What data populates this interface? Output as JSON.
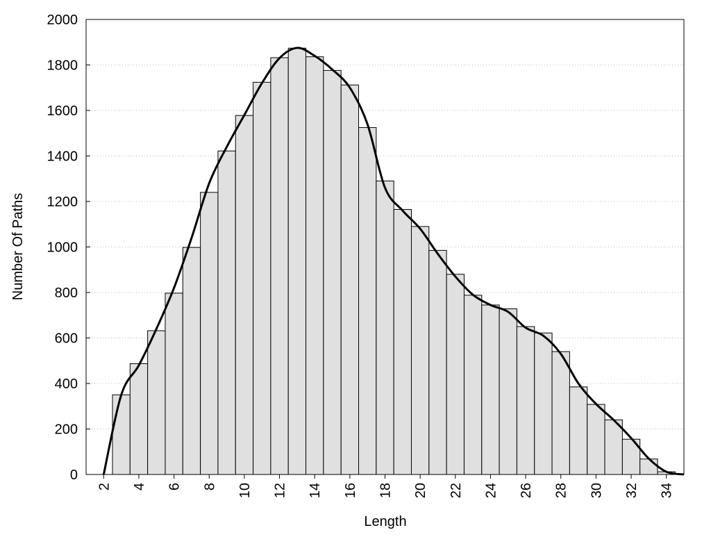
{
  "chart_data": {
    "type": "histogram",
    "xlabel": "Length",
    "ylabel": "Number Of Paths",
    "bins": [
      2.5,
      3.5,
      4.5,
      5.5,
      6.5,
      7.5,
      8.5,
      9.5,
      10.5,
      11.5,
      12.5,
      13.5,
      14.5,
      15.5,
      16.5,
      17.5,
      18.5,
      19.5,
      20.5,
      21.5,
      22.5,
      23.5,
      24.5,
      25.5,
      26.5,
      27.5,
      28.5,
      29.5,
      30.5,
      31.5,
      32.5,
      33.5,
      34.5
    ],
    "values": [
      350,
      487,
      632,
      797,
      998,
      1240,
      1422,
      1578,
      1724,
      1832,
      1874,
      1836,
      1776,
      1712,
      1525,
      1290,
      1165,
      1090,
      985,
      880,
      788,
      745,
      728,
      650,
      622,
      540,
      385,
      308,
      240,
      155,
      68,
      12
    ],
    "color": "#e0e0e0",
    "line": {
      "color": "#000000",
      "x": [
        2,
        3,
        4,
        5,
        6,
        7,
        8,
        9,
        10,
        11,
        12,
        13,
        14,
        15,
        16,
        17,
        18,
        19,
        20,
        21,
        22,
        23,
        24,
        25,
        26,
        27,
        28,
        29,
        30,
        31,
        32,
        33,
        34,
        35
      ],
      "values": [
        0,
        350,
        480,
        640,
        820,
        1040,
        1280,
        1440,
        1580,
        1720,
        1830,
        1875,
        1840,
        1780,
        1700,
        1540,
        1260,
        1160,
        1080,
        970,
        870,
        790,
        745,
        715,
        645,
        610,
        530,
        400,
        310,
        240,
        160,
        70,
        12,
        0
      ]
    },
    "xlim": [
      1,
      35
    ],
    "xticks": [
      2,
      4,
      6,
      8,
      10,
      12,
      14,
      16,
      18,
      20,
      22,
      24,
      26,
      28,
      30,
      32,
      34
    ],
    "ylim": [
      0,
      2000
    ],
    "yticks": [
      0,
      200,
      400,
      600,
      800,
      1000,
      1200,
      1400,
      1600,
      1800,
      2000
    ],
    "grid": true
  }
}
